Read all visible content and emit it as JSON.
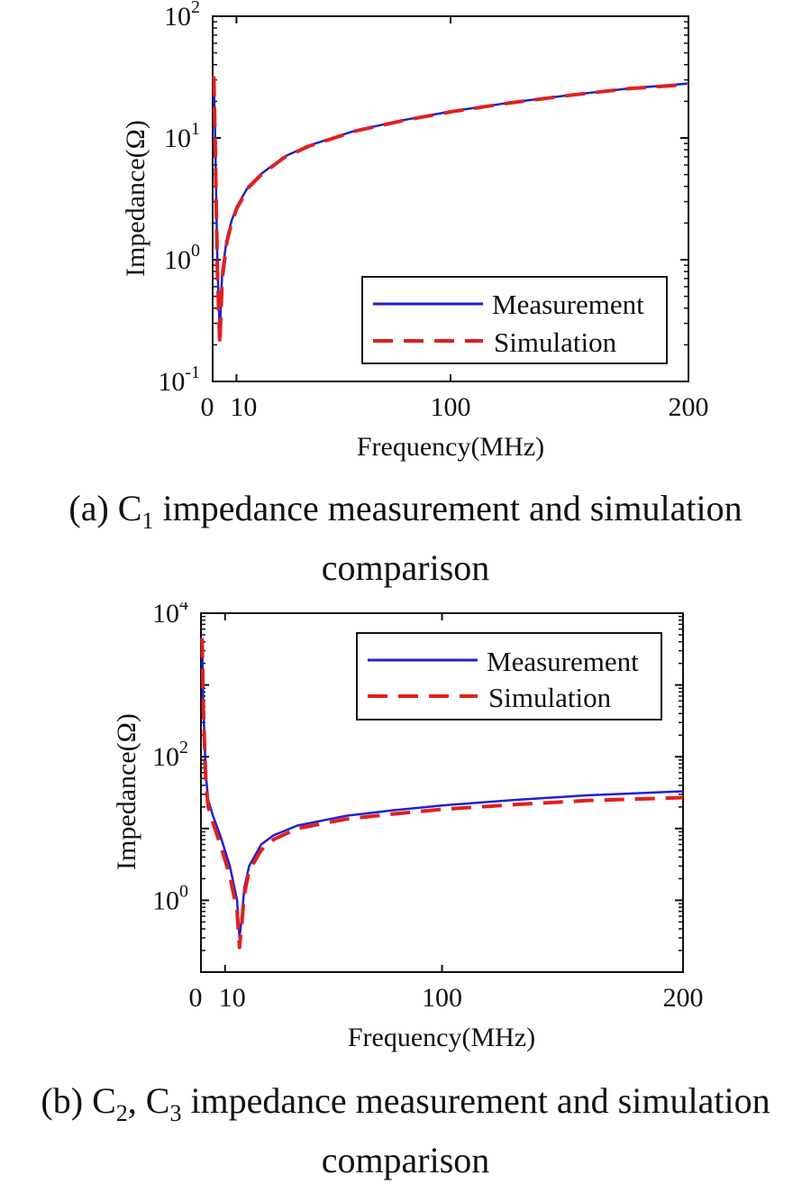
{
  "colors": {
    "measurement": "#2020d0",
    "simulation": "#e02020",
    "axis": "#111111"
  },
  "captions": {
    "a": {
      "prefix": "(a) C",
      "sub": "1",
      "rest": " impedance measurement and simulation",
      "line2": "comparison"
    },
    "b": {
      "prefix": "(b) C",
      "sub1": "2",
      "mid": ", C",
      "sub2": "3",
      "rest": " impedance measurement and simulation",
      "line2": "comparison"
    }
  },
  "chart_data": [
    {
      "type": "line",
      "title": "",
      "xlabel": "Frequency(MHz)",
      "ylabel": "Impedance(Ω)",
      "xscale": "linear",
      "yscale": "log",
      "xlim": [
        0,
        200
      ],
      "ylim_exp": [
        -1,
        2
      ],
      "xticks": [
        0,
        10,
        100,
        200
      ],
      "xtick_labels": [
        "0",
        "10",
        "100",
        "200"
      ],
      "ytick_exps": [
        -1,
        0,
        1,
        2
      ],
      "ytick_base": "10",
      "legend": {
        "position": "bottom-right",
        "entries": [
          "Measurement",
          "Simulation"
        ]
      },
      "series": [
        {
          "name": "Measurement",
          "style": "solid",
          "x": [
            0.5,
            1,
            2,
            3,
            4,
            6,
            8,
            10,
            15,
            20,
            30,
            40,
            60,
            80,
            100,
            125,
            150,
            175,
            200
          ],
          "y": [
            30,
            12,
            0.9,
            0.25,
            0.8,
            1.5,
            2.1,
            2.7,
            4.0,
            5.0,
            7.0,
            8.6,
            11.5,
            14.0,
            16.5,
            19.5,
            22.5,
            25.5,
            28.0
          ]
        },
        {
          "name": "Simulation",
          "style": "dashed",
          "x": [
            0.5,
            1,
            2,
            3,
            4,
            6,
            8,
            10,
            15,
            20,
            30,
            40,
            60,
            80,
            100,
            125,
            150,
            175,
            200
          ],
          "y": [
            32,
            11,
            0.8,
            0.2,
            0.7,
            1.4,
            2.0,
            2.6,
            3.9,
            4.9,
            6.9,
            8.5,
            11.4,
            13.9,
            16.4,
            19.4,
            22.4,
            25.4,
            27.5
          ]
        }
      ]
    },
    {
      "type": "line",
      "title": "",
      "xlabel": "Frequency(MHz)",
      "ylabel": "Impedance(Ω)",
      "xscale": "linear",
      "yscale": "log",
      "xlim": [
        0,
        200
      ],
      "ylim_exp": [
        -1,
        4
      ],
      "xticks": [
        0,
        10,
        100,
        200
      ],
      "xtick_labels": [
        "0",
        "10",
        "100",
        "200"
      ],
      "ytick_exps": [
        0,
        2,
        4
      ],
      "ytick_base": "10",
      "legend": {
        "position": "top-right",
        "entries": [
          "Measurement",
          "Simulation"
        ]
      },
      "series": [
        {
          "name": "Measurement",
          "style": "solid",
          "x": [
            0.5,
            1,
            2,
            3,
            5,
            8,
            12,
            15,
            16,
            17,
            18,
            20,
            25,
            30,
            40,
            60,
            80,
            100,
            130,
            160,
            200
          ],
          "y": [
            4000,
            500,
            60,
            25,
            15,
            8,
            3,
            1,
            0.3,
            0.6,
            1.5,
            3,
            6,
            8,
            11,
            15,
            18,
            21,
            25,
            29,
            33
          ]
        },
        {
          "name": "Simulation",
          "style": "dashed",
          "x": [
            0.5,
            1,
            2,
            3,
            5,
            8,
            12,
            15,
            16,
            17,
            18,
            20,
            25,
            30,
            40,
            60,
            80,
            100,
            130,
            160,
            200
          ],
          "y": [
            4500,
            450,
            50,
            20,
            12,
            6,
            2.2,
            0.7,
            0.22,
            0.5,
            1.2,
            2.6,
            5,
            7,
            10,
            13.5,
            16,
            18.5,
            21.5,
            24.5,
            27
          ]
        }
      ]
    }
  ]
}
